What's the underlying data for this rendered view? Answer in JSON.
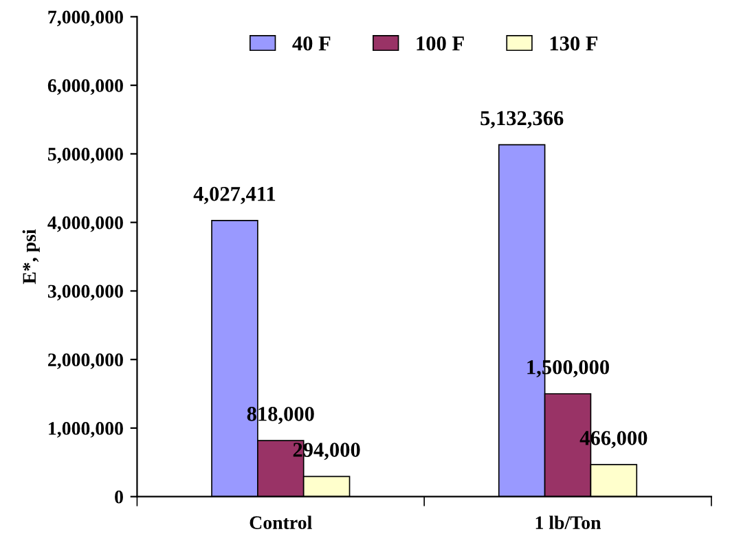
{
  "chart_data": {
    "type": "bar",
    "ylabel": "E*, psi",
    "categories": [
      "Control",
      "1 lb/Ton"
    ],
    "series": [
      {
        "name": "40 F",
        "color": "#9999ff",
        "values": [
          4027411,
          5132366
        ],
        "value_labels": [
          "4,027,411",
          "5,132,366"
        ]
      },
      {
        "name": "100 F",
        "color": "#993366",
        "values": [
          818000,
          1500000
        ],
        "value_labels": [
          "818,000",
          "1,500,000"
        ]
      },
      {
        "name": "130 F",
        "color": "#ffffcc",
        "values": [
          294000,
          466000
        ],
        "value_labels": [
          "294,000",
          "466,000"
        ]
      }
    ],
    "ylim": [
      0,
      7000000
    ],
    "yticks": [
      {
        "value": 0,
        "label": "0"
      },
      {
        "value": 1000000,
        "label": "1,000,000"
      },
      {
        "value": 2000000,
        "label": "2,000,000"
      },
      {
        "value": 3000000,
        "label": "3,000,000"
      },
      {
        "value": 4000000,
        "label": "4,000,000"
      },
      {
        "value": 5000000,
        "label": "5,000,000"
      },
      {
        "value": 6000000,
        "label": "6,000,000"
      },
      {
        "value": 7000000,
        "label": "7,000,000"
      }
    ],
    "grid": false,
    "legend": "top"
  }
}
